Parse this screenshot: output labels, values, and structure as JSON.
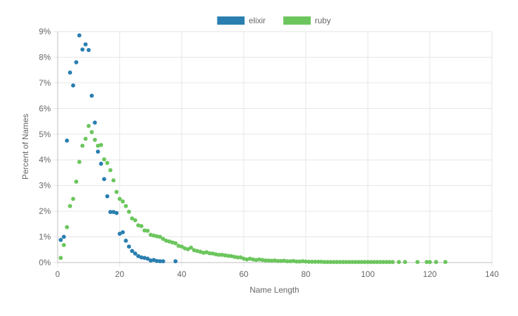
{
  "chart_data": {
    "type": "scatter",
    "title": "",
    "xlabel": "Name Length",
    "ylabel": "Percent of Names",
    "xlim": [
      0,
      140
    ],
    "ylim": [
      0,
      9
    ],
    "x_ticks": [
      0,
      20,
      40,
      60,
      80,
      100,
      120,
      140
    ],
    "y_ticks": [
      0,
      1,
      2,
      3,
      4,
      5,
      6,
      7,
      8,
      9
    ],
    "y_tick_suffix": "%",
    "grid": true,
    "legend_position": "top",
    "series": [
      {
        "name": "elixir",
        "color": "#2a7fb0",
        "points": [
          [
            1,
            0.88
          ],
          [
            2,
            1.0
          ],
          [
            3,
            4.75
          ],
          [
            4,
            7.4
          ],
          [
            5,
            6.9
          ],
          [
            6,
            7.8
          ],
          [
            7,
            8.85
          ],
          [
            8,
            8.3
          ],
          [
            9,
            8.5
          ],
          [
            10,
            8.28
          ],
          [
            11,
            6.5
          ],
          [
            12,
            5.45
          ],
          [
            13,
            4.32
          ],
          [
            14,
            3.85
          ],
          [
            15,
            3.25
          ],
          [
            16,
            2.58
          ],
          [
            17,
            1.97
          ],
          [
            18,
            1.97
          ],
          [
            19,
            1.93
          ],
          [
            20,
            1.12
          ],
          [
            21,
            1.18
          ],
          [
            22,
            0.85
          ],
          [
            23,
            0.62
          ],
          [
            24,
            0.45
          ],
          [
            25,
            0.35
          ],
          [
            26,
            0.25
          ],
          [
            27,
            0.2
          ],
          [
            28,
            0.18
          ],
          [
            29,
            0.15
          ],
          [
            30,
            0.08
          ],
          [
            31,
            0.1
          ],
          [
            32,
            0.06
          ],
          [
            33,
            0.05
          ],
          [
            34,
            0.05
          ],
          [
            38,
            0.05
          ]
        ]
      },
      {
        "name": "ruby",
        "color": "#6cc65d",
        "points": [
          [
            1,
            0.18
          ],
          [
            2,
            0.68
          ],
          [
            3,
            1.38
          ],
          [
            4,
            2.2
          ],
          [
            5,
            2.48
          ],
          [
            6,
            3.15
          ],
          [
            7,
            3.92
          ],
          [
            8,
            4.55
          ],
          [
            9,
            4.82
          ],
          [
            10,
            5.32
          ],
          [
            11,
            5.08
          ],
          [
            12,
            4.78
          ],
          [
            13,
            4.55
          ],
          [
            14,
            4.58
          ],
          [
            15,
            4.02
          ],
          [
            16,
            3.88
          ],
          [
            17,
            3.6
          ],
          [
            18,
            3.2
          ],
          [
            19,
            2.75
          ],
          [
            20,
            2.48
          ],
          [
            21,
            2.38
          ],
          [
            22,
            2.2
          ],
          [
            23,
            1.98
          ],
          [
            24,
            1.72
          ],
          [
            25,
            1.65
          ],
          [
            26,
            1.45
          ],
          [
            27,
            1.42
          ],
          [
            28,
            1.25
          ],
          [
            29,
            1.24
          ],
          [
            30,
            1.08
          ],
          [
            31,
            1.05
          ],
          [
            32,
            1.02
          ],
          [
            33,
            1.0
          ],
          [
            34,
            0.92
          ],
          [
            35,
            0.85
          ],
          [
            36,
            0.82
          ],
          [
            37,
            0.78
          ],
          [
            38,
            0.75
          ],
          [
            39,
            0.65
          ],
          [
            40,
            0.62
          ],
          [
            41,
            0.55
          ],
          [
            42,
            0.52
          ],
          [
            43,
            0.58
          ],
          [
            44,
            0.48
          ],
          [
            45,
            0.45
          ],
          [
            46,
            0.42
          ],
          [
            47,
            0.38
          ],
          [
            48,
            0.4
          ],
          [
            49,
            0.36
          ],
          [
            50,
            0.35
          ],
          [
            51,
            0.32
          ],
          [
            52,
            0.3
          ],
          [
            53,
            0.3
          ],
          [
            54,
            0.28
          ],
          [
            55,
            0.26
          ],
          [
            56,
            0.25
          ],
          [
            57,
            0.22
          ],
          [
            58,
            0.2
          ],
          [
            59,
            0.2
          ],
          [
            60,
            0.15
          ],
          [
            61,
            0.12
          ],
          [
            62,
            0.15
          ],
          [
            63,
            0.12
          ],
          [
            64,
            0.1
          ],
          [
            65,
            0.12
          ],
          [
            66,
            0.1
          ],
          [
            67,
            0.08
          ],
          [
            68,
            0.08
          ],
          [
            69,
            0.07
          ],
          [
            70,
            0.08
          ],
          [
            71,
            0.06
          ],
          [
            72,
            0.06
          ],
          [
            73,
            0.07
          ],
          [
            74,
            0.05
          ],
          [
            75,
            0.05
          ],
          [
            76,
            0.06
          ],
          [
            77,
            0.04
          ],
          [
            78,
            0.04
          ],
          [
            79,
            0.05
          ],
          [
            80,
            0.04
          ],
          [
            81,
            0.03
          ],
          [
            82,
            0.03
          ],
          [
            83,
            0.03
          ],
          [
            84,
            0.03
          ],
          [
            85,
            0.03
          ],
          [
            86,
            0.02
          ],
          [
            87,
            0.02
          ],
          [
            88,
            0.02
          ],
          [
            89,
            0.02
          ],
          [
            90,
            0.02
          ],
          [
            91,
            0.02
          ],
          [
            92,
            0.02
          ],
          [
            93,
            0.02
          ],
          [
            94,
            0.02
          ],
          [
            95,
            0.02
          ],
          [
            96,
            0.02
          ],
          [
            97,
            0.02
          ],
          [
            98,
            0.02
          ],
          [
            99,
            0.02
          ],
          [
            100,
            0.02
          ],
          [
            101,
            0.02
          ],
          [
            102,
            0.02
          ],
          [
            103,
            0.02
          ],
          [
            104,
            0.02
          ],
          [
            105,
            0.02
          ],
          [
            106,
            0.02
          ],
          [
            107,
            0.02
          ],
          [
            108,
            0.02
          ],
          [
            110,
            0.02
          ],
          [
            112,
            0.02
          ],
          [
            116,
            0.02
          ],
          [
            119,
            0.02
          ],
          [
            120,
            0.02
          ],
          [
            122,
            0.02
          ],
          [
            125,
            0.02
          ]
        ]
      }
    ]
  }
}
